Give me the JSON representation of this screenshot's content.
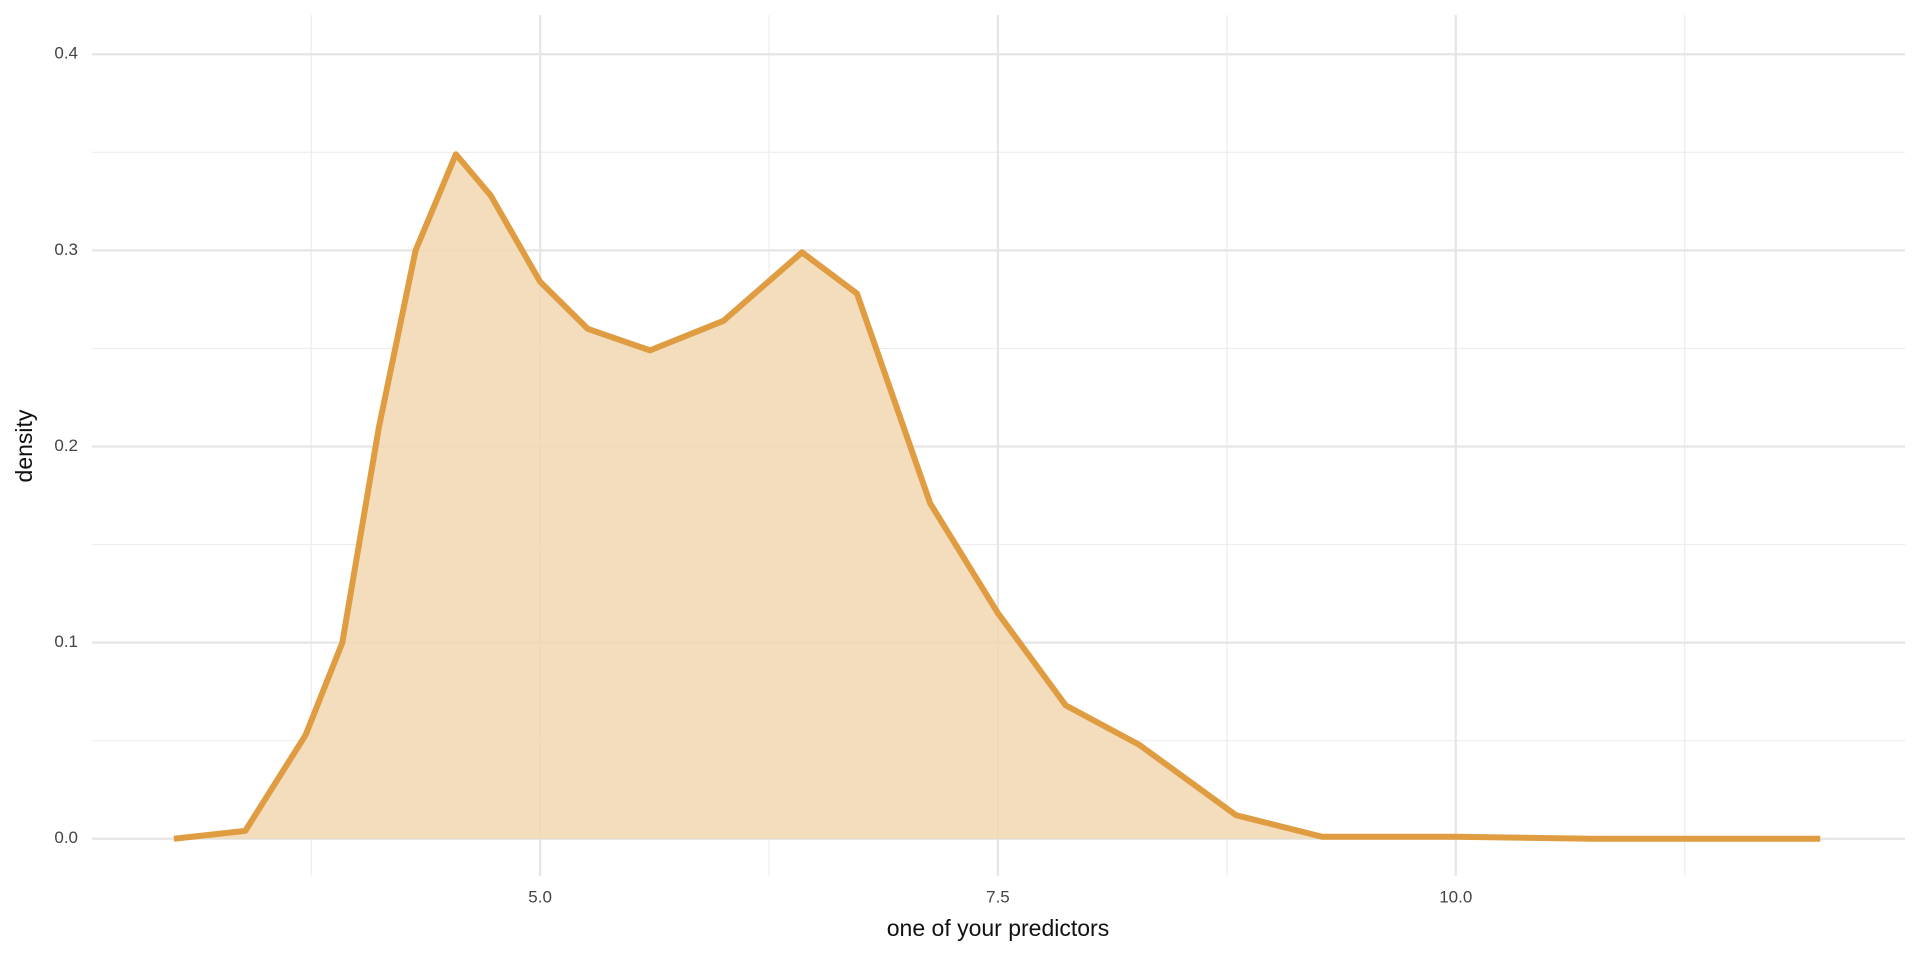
{
  "chart_data": {
    "type": "area",
    "x_label": "one of your predictors",
    "y_label": "density",
    "x": [
      3.0,
      3.39,
      3.72,
      3.92,
      4.12,
      4.32,
      4.54,
      4.73,
      5.0,
      5.26,
      5.6,
      6.0,
      6.43,
      6.73,
      7.13,
      7.5,
      7.87,
      8.27,
      8.8,
      9.27,
      10.0,
      10.74,
      11.99
    ],
    "values": [
      0.0,
      0.004,
      0.053,
      0.1,
      0.21,
      0.3,
      0.349,
      0.328,
      0.284,
      0.26,
      0.249,
      0.264,
      0.299,
      0.278,
      0.171,
      0.115,
      0.068,
      0.048,
      0.012,
      0.001,
      0.001,
      0.0,
      0.0
    ],
    "color": "#e09c41",
    "fill_color": "#f2d7b1",
    "xlim": [
      2.553,
      12.453
    ],
    "ylim": [
      -0.019,
      0.42
    ],
    "xticks": [
      {
        "value": 5,
        "label": "5.0"
      },
      {
        "value": 7.5,
        "label": "7.5"
      },
      {
        "value": 10,
        "label": "10.0"
      }
    ],
    "yticks": [
      {
        "value": 0,
        "label": "0.0"
      },
      0.1,
      0.2,
      0.3,
      0.4
    ],
    "grid": true
  }
}
